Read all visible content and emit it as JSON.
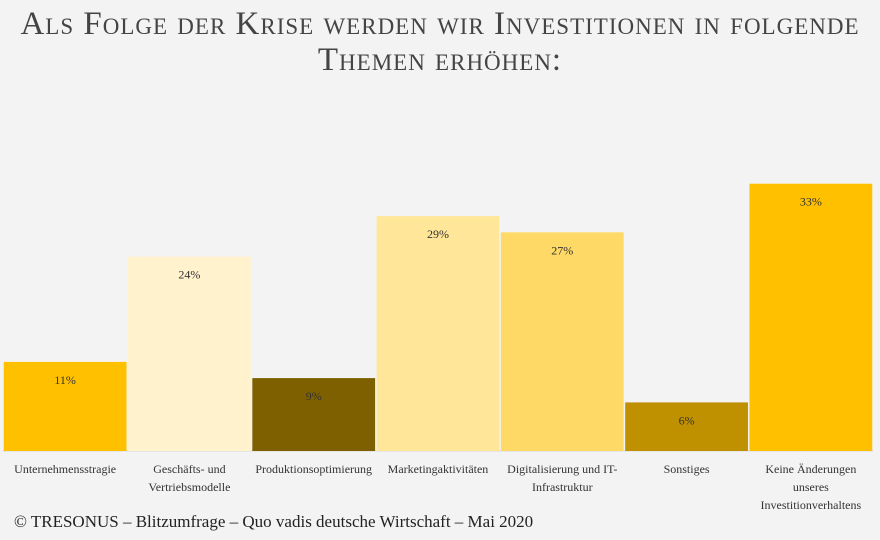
{
  "title": "Als Folge der Krise werden wir Investitionen in folgende Themen erhöhen:",
  "footer": "© TRESONUS – Blitzumfrage – Quo vadis deutsche Wirtschaft – Mai 2020",
  "chart_data": {
    "type": "bar",
    "title": "Als Folge der Krise werden wir Investitionen in folgende Themen erhöhen:",
    "categories": [
      "Unternehmensstragie",
      "Geschäfts- und Vertriebsmodelle",
      "Produktionsoptimierung",
      "Marketingaktivitäten",
      "Digitalisierung und IT-Infrastruktur",
      "Sonstiges",
      "Keine Änderungen unseres Investitionverhaltens"
    ],
    "category_lines": [
      [
        "Unternehmensstragie"
      ],
      [
        "Geschäfts- und",
        "Vertriebsmodelle"
      ],
      [
        "Produktionsoptimierung"
      ],
      [
        "Marketingaktivitäten"
      ],
      [
        "Digitalisierung und IT-",
        "Infrastruktur"
      ],
      [
        "Sonstiges"
      ],
      [
        "Keine Änderungen",
        "unseres",
        "Investitionverhaltens"
      ]
    ],
    "values": [
      11,
      24,
      9,
      29,
      27,
      6,
      33
    ],
    "value_labels": [
      "11%",
      "24%",
      "9%",
      "29%",
      "27%",
      "6%",
      "33%"
    ],
    "colors": [
      "#ffc000",
      "#fff2cc",
      "#7f6000",
      "#ffe699",
      "#ffd966",
      "#bf9000",
      "#ffc000"
    ],
    "ylim": [
      0,
      40
    ],
    "grid": false,
    "xlabel": "",
    "ylabel": ""
  }
}
